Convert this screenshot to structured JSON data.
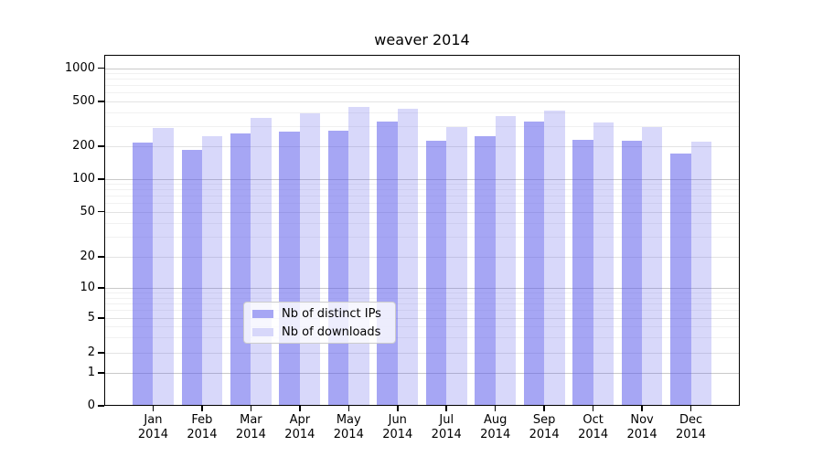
{
  "chart_data": {
    "type": "bar",
    "title": "weaver 2014",
    "scale": "symlog",
    "grid": true,
    "legend_position": "bottom-center",
    "categories": [
      "Jan",
      "Feb",
      "Mar",
      "Apr",
      "May",
      "Jun",
      "Jul",
      "Aug",
      "Sep",
      "Oct",
      "Nov",
      "Dec"
    ],
    "year": "2014",
    "series": [
      {
        "name": "Nb of distinct IPs",
        "color": "#a6a6f4",
        "fill": "rgba(90,90,235,0.54)",
        "values": [
          215,
          185,
          260,
          270,
          275,
          330,
          225,
          245,
          330,
          230,
          225,
          170
        ]
      },
      {
        "name": "Nb of downloads",
        "color": "#d7d7fa",
        "fill": "rgba(90,90,235,0.24)",
        "values": [
          290,
          245,
          360,
          395,
          450,
          430,
          295,
          370,
          415,
          325,
          295,
          220
        ]
      }
    ],
    "yticks": [
      0,
      1,
      2,
      5,
      10,
      20,
      50,
      100,
      200,
      500,
      1000
    ],
    "ylim": [
      0,
      1300
    ],
    "xlabel": "",
    "ylabel": ""
  },
  "colors": {
    "axis": "#000000",
    "grid_major": "#c9c9c9",
    "grid_minor_labeled": "#e3e3e3",
    "grid_minor": "#f1f1f1",
    "background": "#ffffff",
    "legend_border": "#cccccc"
  }
}
